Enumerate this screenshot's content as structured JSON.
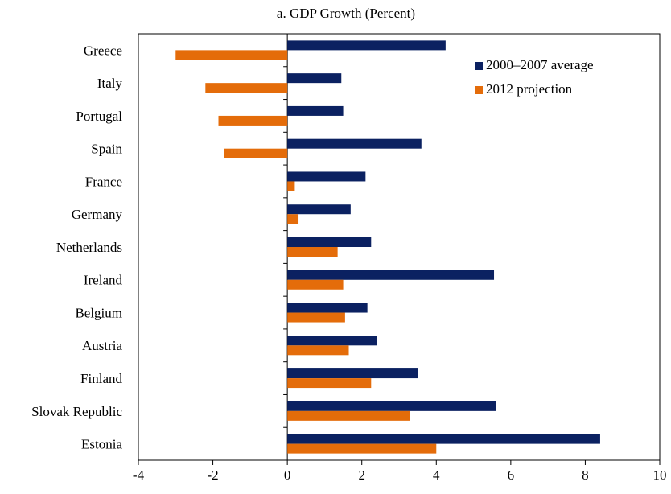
{
  "chart_data": {
    "type": "bar",
    "orientation": "horizontal",
    "title": "a. GDP Growth (Percent)",
    "categories": [
      "Greece",
      "Italy",
      "Portugal",
      "Spain",
      "France",
      "Germany",
      "Netherlands",
      "Ireland",
      "Belgium",
      "Austria",
      "Finland",
      "Slovak Republic",
      "Estonia"
    ],
    "series": [
      {
        "name": "2000–2007 average",
        "color": "#0b2161",
        "values": [
          4.25,
          1.45,
          1.5,
          3.6,
          2.1,
          1.7,
          2.25,
          5.55,
          2.15,
          2.4,
          3.5,
          5.6,
          8.4
        ]
      },
      {
        "name": "2012 projection",
        "color": "#e46c0a",
        "values": [
          -3.0,
          -2.2,
          -1.85,
          -1.7,
          0.2,
          0.3,
          1.35,
          1.5,
          1.55,
          1.65,
          2.25,
          3.3,
          4.0
        ]
      }
    ],
    "xlim": [
      -4,
      10
    ],
    "xticks": [
      -4,
      -2,
      0,
      2,
      4,
      6,
      8,
      10
    ],
    "legend": "upper right"
  }
}
